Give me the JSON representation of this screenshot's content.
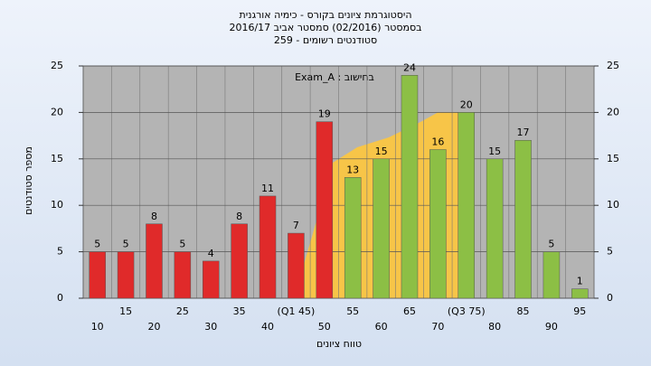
{
  "chart_data": {
    "type": "bar",
    "title": [
      "היסטוגרמת ציונים בקורס - כימיה אורגנית",
      "בסמסטר  (02/2016)  סמסטר אביב  2016/17",
      "סטודנטים רשומים - 259"
    ],
    "annotation": "בחישוב : Exam_A",
    "x_label": "טווח ציונים",
    "y_label": "מספר סטודנטים",
    "categories": [
      "10",
      "15",
      "20",
      "25",
      "30",
      "35",
      "40",
      "(Q1 45)",
      "50",
      "55",
      "60",
      "65",
      "70",
      "(Q3 75)",
      "80",
      "85",
      "90",
      "95"
    ],
    "values": [
      5,
      5,
      8,
      5,
      4,
      8,
      11,
      7,
      19,
      13,
      15,
      24,
      16,
      20,
      15,
      17,
      5,
      1
    ],
    "colors": [
      "#e02a2a",
      "#e02a2a",
      "#e02a2a",
      "#e02a2a",
      "#e02a2a",
      "#e02a2a",
      "#e02a2a",
      "#e02a2a",
      "#e02a2a",
      "#8cbf45",
      "#8cbf45",
      "#8cbf45",
      "#8cbf45",
      "#8cbf45",
      "#8cbf45",
      "#8cbf45",
      "#8cbf45",
      "#8cbf45"
    ],
    "ylim": [
      0,
      25
    ],
    "yticks": [
      0,
      5,
      10,
      15,
      20,
      25
    ],
    "y2lim": [
      0,
      25
    ],
    "y2ticks": [
      0,
      5,
      10,
      15,
      20,
      25
    ],
    "grid": true
  }
}
